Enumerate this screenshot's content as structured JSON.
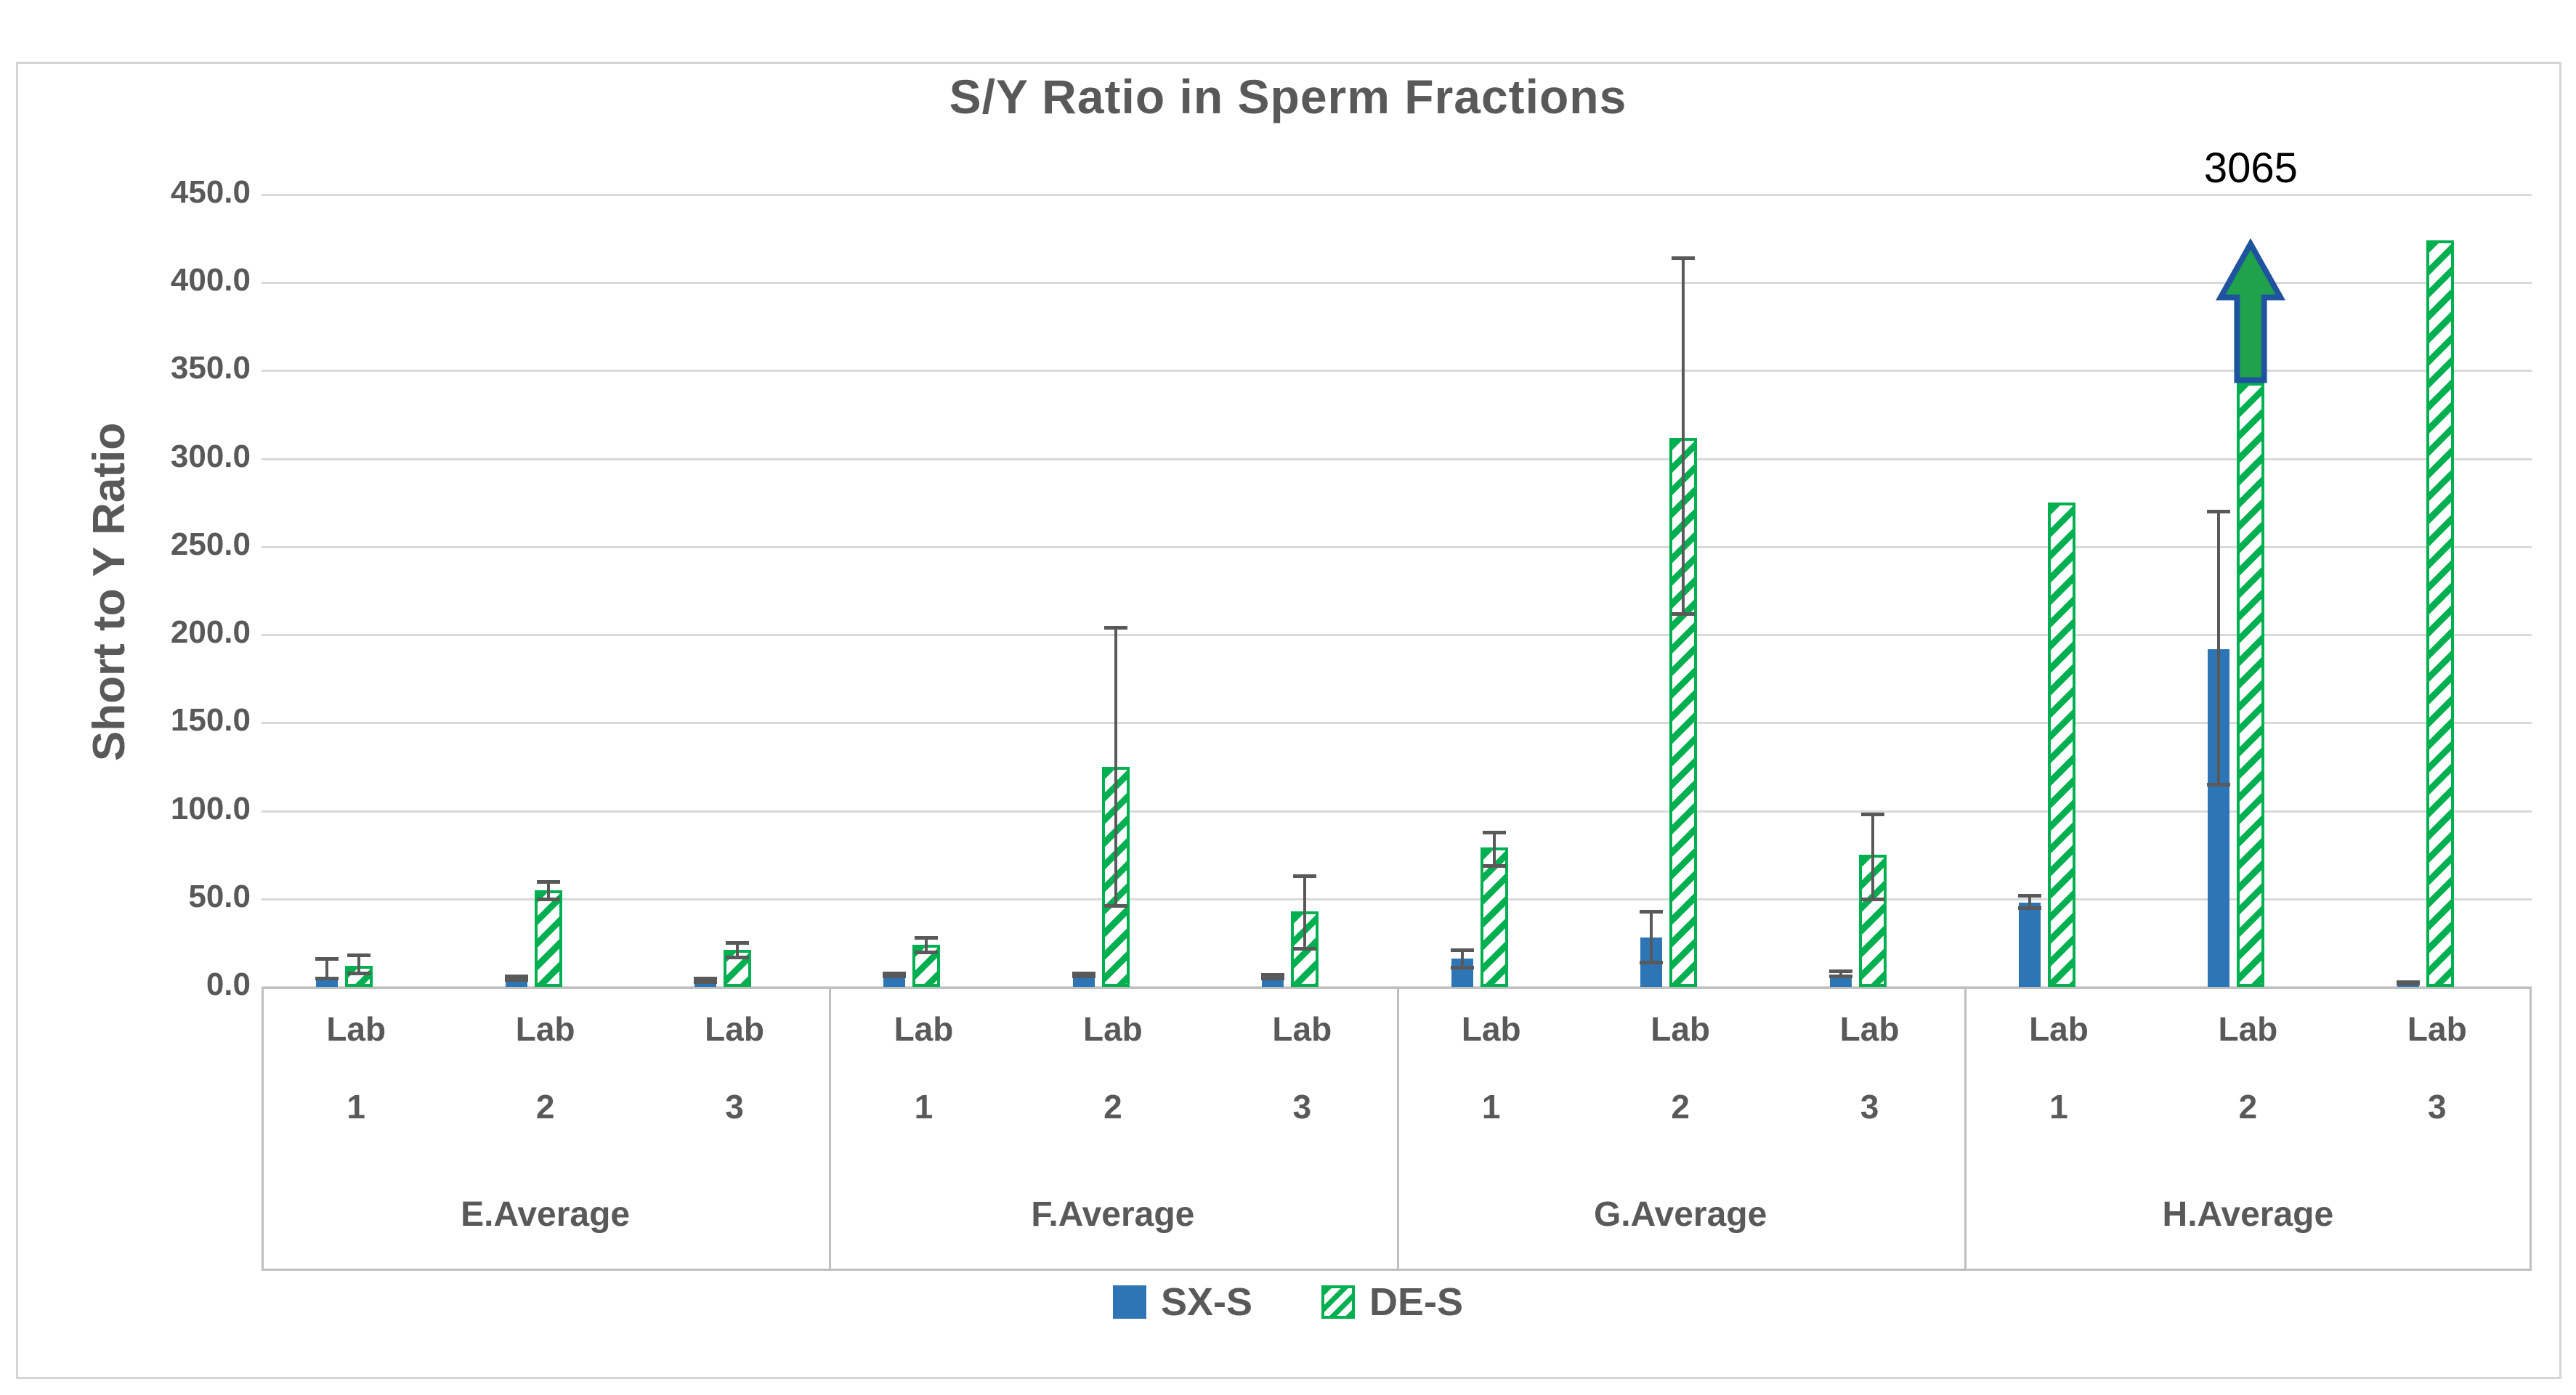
{
  "title": "S/Y Ratio in Sperm Fractions",
  "y_axis": {
    "title": "Short to Y Ratio",
    "min": 0,
    "max": 450,
    "step": 50,
    "tick_labels": [
      "0.0",
      "50.0",
      "100.0",
      "150.0",
      "200.0",
      "250.0",
      "300.0",
      "350.0",
      "400.0",
      "450.0"
    ]
  },
  "legend": {
    "items": [
      {
        "label": "SX-S",
        "pattern": "solid",
        "color": "#2E75B6"
      },
      {
        "label": "DE-S",
        "pattern": "diagonal-hatch",
        "color": "#00B050"
      }
    ]
  },
  "annotation": {
    "text": "3065",
    "group": "H.Average",
    "lab": "Lab 2",
    "series": "DE-S"
  },
  "colors": {
    "sx": "#2E75B6",
    "de": "#00B050",
    "error_bar": "#595959",
    "gridline": "#D9D9D9",
    "axis_border": "#BFBFBF",
    "text": "#595959",
    "annotation_text": "#000000",
    "arrow_fill": "#1FA24B",
    "arrow_border": "#1F53A0"
  },
  "chart_data": {
    "type": "bar",
    "title": "S/Y Ratio in Sperm Fractions",
    "ylabel": "Short to Y Ratio",
    "ylim": [
      0,
      450
    ],
    "grid": true,
    "legend_position": "bottom",
    "series_names": [
      "SX-S",
      "DE-S"
    ],
    "groups": [
      {
        "label": "E.Average",
        "labs": [
          {
            "label": "Lab 1",
            "SX-S": {
              "value": 4,
              "err_lo": 5,
              "err_hi": 16
            },
            "DE-S": {
              "value": 12,
              "err_lo": 8,
              "err_hi": 18
            }
          },
          {
            "label": "Lab 2",
            "SX-S": {
              "value": 4,
              "err_lo": 4,
              "err_hi": 6
            },
            "DE-S": {
              "value": 55,
              "err_lo": 50,
              "err_hi": 60
            }
          },
          {
            "label": "Lab 3",
            "SX-S": {
              "value": 3,
              "err_lo": 3,
              "err_hi": 5
            },
            "DE-S": {
              "value": 21,
              "err_lo": 17,
              "err_hi": 25
            }
          }
        ]
      },
      {
        "label": "F.Average",
        "labs": [
          {
            "label": "Lab 1",
            "SX-S": {
              "value": 6,
              "err_lo": 6,
              "err_hi": 8
            },
            "DE-S": {
              "value": 24,
              "err_lo": 20,
              "err_hi": 28
            }
          },
          {
            "label": "Lab 2",
            "SX-S": {
              "value": 6,
              "err_lo": 6,
              "err_hi": 8
            },
            "DE-S": {
              "value": 125,
              "err_lo": 46,
              "err_hi": 204
            }
          },
          {
            "label": "Lab 3",
            "SX-S": {
              "value": 5,
              "err_lo": 5,
              "err_hi": 7
            },
            "DE-S": {
              "value": 43,
              "err_lo": 22,
              "err_hi": 63
            }
          }
        ]
      },
      {
        "label": "G.Average",
        "labs": [
          {
            "label": "Lab 1",
            "SX-S": {
              "value": 16,
              "err_lo": 11,
              "err_hi": 21
            },
            "DE-S": {
              "value": 79,
              "err_lo": 69,
              "err_hi": 88
            }
          },
          {
            "label": "Lab 2",
            "SX-S": {
              "value": 28,
              "err_lo": 14,
              "err_hi": 43
            },
            "DE-S": {
              "value": 312,
              "err_lo": 212,
              "err_hi": 414
            }
          },
          {
            "label": "Lab 3",
            "SX-S": {
              "value": 7,
              "err_lo": 6,
              "err_hi": 9
            },
            "DE-S": {
              "value": 75,
              "err_lo": 50,
              "err_hi": 98
            }
          }
        ]
      },
      {
        "label": "H.Average",
        "labs": [
          {
            "label": "Lab 1",
            "SX-S": {
              "value": 48,
              "err_lo": 45,
              "err_hi": 52
            },
            "DE-S": {
              "value": 275
            }
          },
          {
            "label": "Lab 2",
            "SX-S": {
              "value": 192,
              "err_lo": 115,
              "err_hi": 270
            },
            "DE-S": {
              "value": 3065,
              "clipped": true,
              "clip_bar_top": 343,
              "arrow_tip": 424,
              "annotation": "3065"
            }
          },
          {
            "label": "Lab 3",
            "SX-S": {
              "value": 2,
              "err_lo": 2,
              "err_hi": 3
            },
            "DE-S": {
              "value": 424
            }
          }
        ]
      }
    ]
  }
}
